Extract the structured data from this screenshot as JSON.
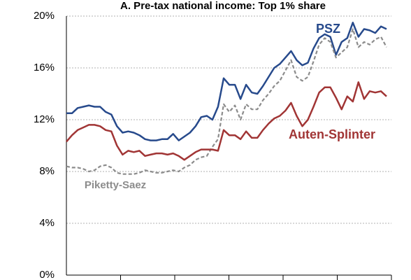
{
  "chart_data": {
    "type": "line",
    "title": "A. Pre-tax national income: Top 1% share",
    "categories": [
      null,
      null,
      null,
      null,
      null,
      null,
      null,
      null,
      null,
      null,
      null,
      null,
      null,
      null,
      null,
      null,
      null,
      null,
      null,
      null,
      null,
      null,
      null,
      null,
      null,
      null,
      null,
      null,
      null,
      null,
      null,
      null,
      null,
      null,
      null,
      null,
      null,
      null,
      null,
      null,
      null,
      null,
      null,
      null,
      null,
      null,
      null,
      null,
      null,
      null,
      null,
      null,
      null,
      null,
      null,
      null,
      null,
      null
    ],
    "series": [
      {
        "name": "PSZ",
        "color": "#274a8c",
        "dash": false,
        "values": [
          12.5,
          12.5,
          12.9,
          13.0,
          13.1,
          13.0,
          13.0,
          12.6,
          12.4,
          11.5,
          11.0,
          11.1,
          11.0,
          10.8,
          10.5,
          10.4,
          10.4,
          10.5,
          10.5,
          10.9,
          10.4,
          10.7,
          11.0,
          11.5,
          12.2,
          12.3,
          12.0,
          13.0,
          15.2,
          14.7,
          14.7,
          13.6,
          14.7,
          14.1,
          14.0,
          14.6,
          15.3,
          16.0,
          16.3,
          16.8,
          17.3,
          16.6,
          16.2,
          16.4,
          17.5,
          18.3,
          18.6,
          18.4,
          17.0,
          18.0,
          18.3,
          19.5,
          18.4,
          19.0,
          18.9,
          18.7,
          19.2,
          19.0
        ]
      },
      {
        "name": "Piketty-Saez",
        "color": "#8c8c8c",
        "dash": true,
        "values": [
          8.4,
          8.3,
          8.3,
          8.2,
          8.0,
          8.1,
          8.4,
          8.5,
          8.3,
          7.9,
          7.8,
          7.8,
          7.8,
          7.9,
          8.1,
          8.0,
          7.9,
          7.9,
          8.0,
          8.1,
          8.0,
          8.3,
          8.5,
          8.9,
          9.1,
          9.2,
          9.9,
          10.5,
          13.2,
          12.6,
          13.1,
          12.0,
          13.2,
          12.8,
          12.8,
          13.5,
          14.0,
          14.6,
          15.0,
          15.8,
          16.6,
          15.3,
          15.0,
          15.3,
          16.5,
          17.8,
          18.3,
          18.0,
          16.8,
          17.2,
          17.6,
          19.0,
          17.6,
          18.0,
          17.8,
          18.2,
          18.4,
          17.6
        ]
      },
      {
        "name": "Auten-Splinter",
        "color": "#a13535",
        "dash": false,
        "values": [
          10.3,
          10.8,
          11.2,
          11.4,
          11.6,
          11.6,
          11.5,
          11.2,
          11.1,
          10.0,
          9.3,
          9.6,
          9.5,
          9.6,
          9.2,
          9.3,
          9.4,
          9.4,
          9.3,
          9.4,
          9.2,
          8.9,
          9.2,
          9.5,
          9.7,
          9.7,
          9.7,
          9.6,
          11.2,
          10.8,
          10.8,
          10.5,
          11.1,
          10.6,
          10.6,
          11.2,
          11.7,
          12.1,
          12.3,
          12.7,
          13.3,
          12.3,
          11.5,
          12.0,
          13.0,
          14.1,
          14.5,
          14.5,
          13.7,
          12.8,
          13.8,
          13.4,
          14.9,
          13.6,
          14.2,
          14.1,
          14.2,
          13.8
        ]
      }
    ],
    "ylim": [
      0,
      20
    ],
    "yticks": [
      {
        "value": 0,
        "label": "0%"
      },
      {
        "value": 4,
        "label": "4%"
      },
      {
        "value": 8,
        "label": "8%"
      },
      {
        "value": 12,
        "label": "12%"
      },
      {
        "value": 16,
        "label": "16%"
      },
      {
        "value": 20,
        "label": "20%"
      }
    ],
    "grid": true
  }
}
